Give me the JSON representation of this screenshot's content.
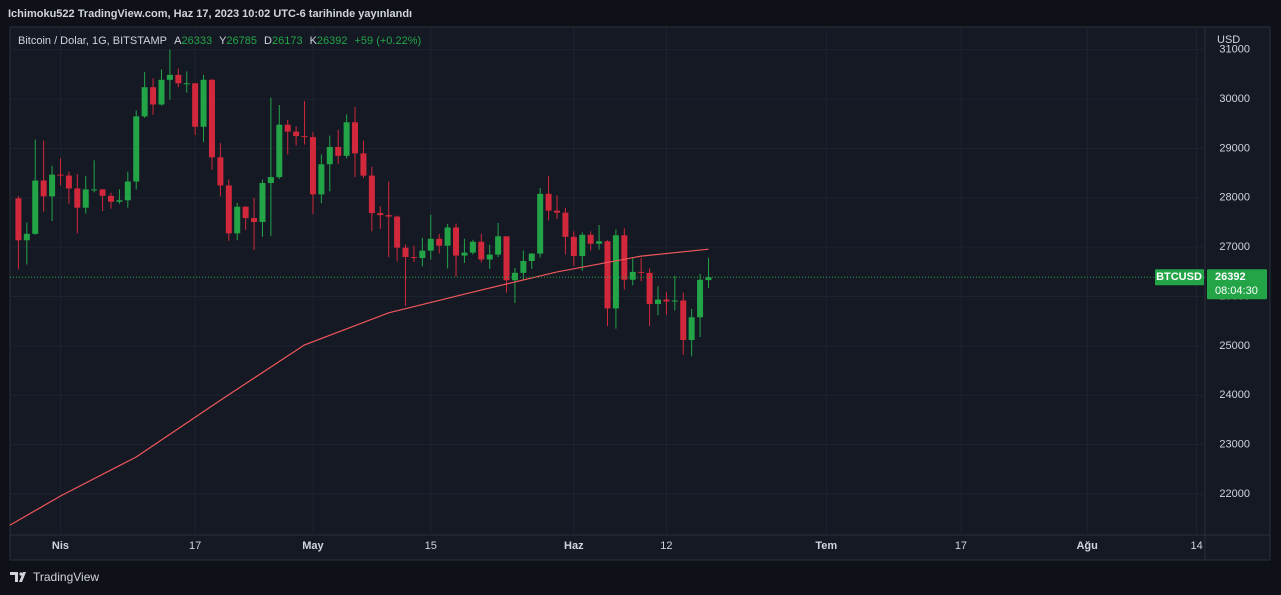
{
  "chart_data": {
    "type": "candlestick",
    "title": "Ichimoku522 TradingView.com, Haz 17, 2023 10:02 UTC-6 tarihinde yayınlandı",
    "symbol": "Bitcoin / Dolar, 1G, BITSTAMP",
    "ohlc_labels": [
      "A",
      "Y",
      "D",
      "K"
    ],
    "change": "+59 (+0.22%)",
    "currency": "USD",
    "ticker": "BTCUSD",
    "countdown": "08:04:30",
    "brand": "TradingView",
    "up_color": "#22a447",
    "down_color": "#d1283b",
    "x": [
      "03-27",
      "03-28",
      "03-29",
      "03-30",
      "03-31",
      "04-01",
      "04-02",
      "04-03",
      "04-04",
      "04-05",
      "04-06",
      "04-07",
      "04-08",
      "04-09",
      "04-10",
      "04-11",
      "04-12",
      "04-13",
      "04-14",
      "04-15",
      "04-16",
      "04-17",
      "04-18",
      "04-19",
      "04-20",
      "04-21",
      "04-22",
      "04-23",
      "04-24",
      "04-25",
      "04-26",
      "04-27",
      "04-28",
      "04-29",
      "04-30",
      "05-01",
      "05-02",
      "05-03",
      "05-04",
      "05-05",
      "05-06",
      "05-07",
      "05-08",
      "05-09",
      "05-10",
      "05-11",
      "05-12",
      "05-13",
      "05-14",
      "05-15",
      "05-16",
      "05-17",
      "05-18",
      "05-19",
      "05-20",
      "05-21",
      "05-22",
      "05-23",
      "05-24",
      "05-25",
      "05-26",
      "05-27",
      "05-28",
      "05-29",
      "05-30",
      "05-31",
      "06-01",
      "06-02",
      "06-03",
      "06-04",
      "06-05",
      "06-06",
      "06-07",
      "06-08",
      "06-09",
      "06-10",
      "06-11",
      "06-12",
      "06-13",
      "06-14",
      "06-15",
      "06-16",
      "06-17"
    ],
    "open": [
      27990,
      27140,
      27270,
      28350,
      28030,
      28470,
      28450,
      28190,
      27800,
      28170,
      28170,
      28040,
      27920,
      27950,
      28330,
      29650,
      30240,
      29890,
      30390,
      30490,
      30320,
      30320,
      29440,
      30390,
      28820,
      28250,
      27280,
      27820,
      27590,
      27510,
      28300,
      28420,
      29480,
      29340,
      29250,
      29230,
      28070,
      28680,
      29030,
      28850,
      29530,
      28900,
      28450,
      27690,
      27650,
      27620,
      26990,
      26800,
      26780,
      26930,
      27170,
      27030,
      27400,
      26830,
      26890,
      27110,
      26750,
      26850,
      27220,
      26330,
      26480,
      26720,
      26870,
      28080,
      27740,
      27700,
      27210,
      26820,
      27250,
      27070,
      27120,
      25760,
      27240,
      26340,
      26500,
      26480,
      25850,
      25940,
      25900,
      25920,
      25120,
      25580,
      26333
    ],
    "high": [
      28040,
      27500,
      29180,
      29160,
      28650,
      28800,
      28530,
      28480,
      28440,
      28760,
      28180,
      28100,
      28170,
      28530,
      29770,
      30550,
      30420,
      30600,
      31000,
      30620,
      30560,
      30320,
      30490,
      30410,
      29110,
      28370,
      27900,
      27830,
      28000,
      28370,
      30030,
      29880,
      29580,
      29450,
      29960,
      29330,
      28880,
      29260,
      29380,
      29690,
      29840,
      29160,
      28630,
      27830,
      28330,
      27640,
      27050,
      27030,
      27190,
      27660,
      27270,
      27470,
      27480,
      27170,
      27150,
      27270,
      27050,
      27490,
      27220,
      26580,
      26930,
      26880,
      28200,
      28440,
      28050,
      27800,
      27320,
      27300,
      27320,
      27450,
      27140,
      27360,
      27380,
      26800,
      26780,
      26570,
      26210,
      26090,
      26420,
      26080,
      25750,
      26460,
      26785
    ],
    "low": [
      26550,
      26650,
      27250,
      27720,
      27530,
      28250,
      27880,
      27280,
      27680,
      28110,
      27730,
      27780,
      27880,
      27800,
      28170,
      29620,
      29680,
      29870,
      29990,
      30240,
      30130,
      29270,
      29130,
      28570,
      28030,
      27130,
      27140,
      27350,
      26940,
      27210,
      27230,
      28380,
      28880,
      29060,
      29080,
      27670,
      27890,
      28130,
      28690,
      28800,
      28420,
      28400,
      27320,
      27370,
      26800,
      26710,
      25810,
      26700,
      26610,
      26750,
      26870,
      26570,
      26400,
      26680,
      26850,
      26690,
      26560,
      26800,
      26080,
      25870,
      26340,
      26560,
      26790,
      27540,
      27570,
      26850,
      26620,
      26520,
      26930,
      26950,
      25400,
      25350,
      26140,
      26230,
      26310,
      25400,
      25620,
      25630,
      25720,
      24820,
      24790,
      25180,
      26173
    ],
    "close": [
      27140,
      27270,
      28350,
      28030,
      28470,
      28450,
      28190,
      27800,
      28170,
      28170,
      28040,
      27920,
      27950,
      28330,
      29650,
      30240,
      29890,
      30390,
      30490,
      30320,
      30320,
      29440,
      30390,
      28820,
      28250,
      27280,
      27820,
      27590,
      27510,
      28300,
      28420,
      29480,
      29340,
      29250,
      29230,
      28070,
      28680,
      29030,
      28850,
      29530,
      28900,
      28450,
      27690,
      27650,
      27620,
      26990,
      26800,
      26780,
      26930,
      27170,
      27030,
      27400,
      26830,
      26890,
      27110,
      26750,
      26850,
      27220,
      26330,
      26480,
      26720,
      26870,
      28080,
      27740,
      27700,
      27210,
      26820,
      27250,
      27070,
      27120,
      25760,
      27240,
      26340,
      26500,
      26480,
      25850,
      25940,
      25900,
      25920,
      25120,
      25580,
      26340,
      26392
    ],
    "ma": {
      "color": "#f0575a",
      "x": [
        "03-26",
        "04-01",
        "04-10",
        "04-20",
        "04-30",
        "05-10",
        "05-20",
        "05-30",
        "06-09",
        "06-17"
      ],
      "values": [
        21370,
        21960,
        22750,
        23900,
        25020,
        25670,
        26090,
        26500,
        26820,
        26960
      ]
    },
    "xlim": [
      "03-26",
      "08-15"
    ],
    "xticks": [
      {
        "value": "04-01",
        "label": "Nis"
      },
      {
        "value": "04-17",
        "label": "17"
      },
      {
        "value": "05-01",
        "label": "May"
      },
      {
        "value": "05-15",
        "label": "15"
      },
      {
        "value": "06-01",
        "label": "Haz"
      },
      {
        "value": "06-12",
        "label": "12"
      },
      {
        "value": "07-01",
        "label": "Tem"
      },
      {
        "value": "07-17",
        "label": "17"
      },
      {
        "value": "08-01",
        "label": "Ağu"
      },
      {
        "value": "08-14",
        "label": "14"
      }
    ],
    "ylim": [
      21170,
      31460
    ],
    "yticks": [
      22000,
      23000,
      24000,
      25000,
      26000,
      27000,
      28000,
      29000,
      30000,
      31000
    ],
    "grid": true
  }
}
